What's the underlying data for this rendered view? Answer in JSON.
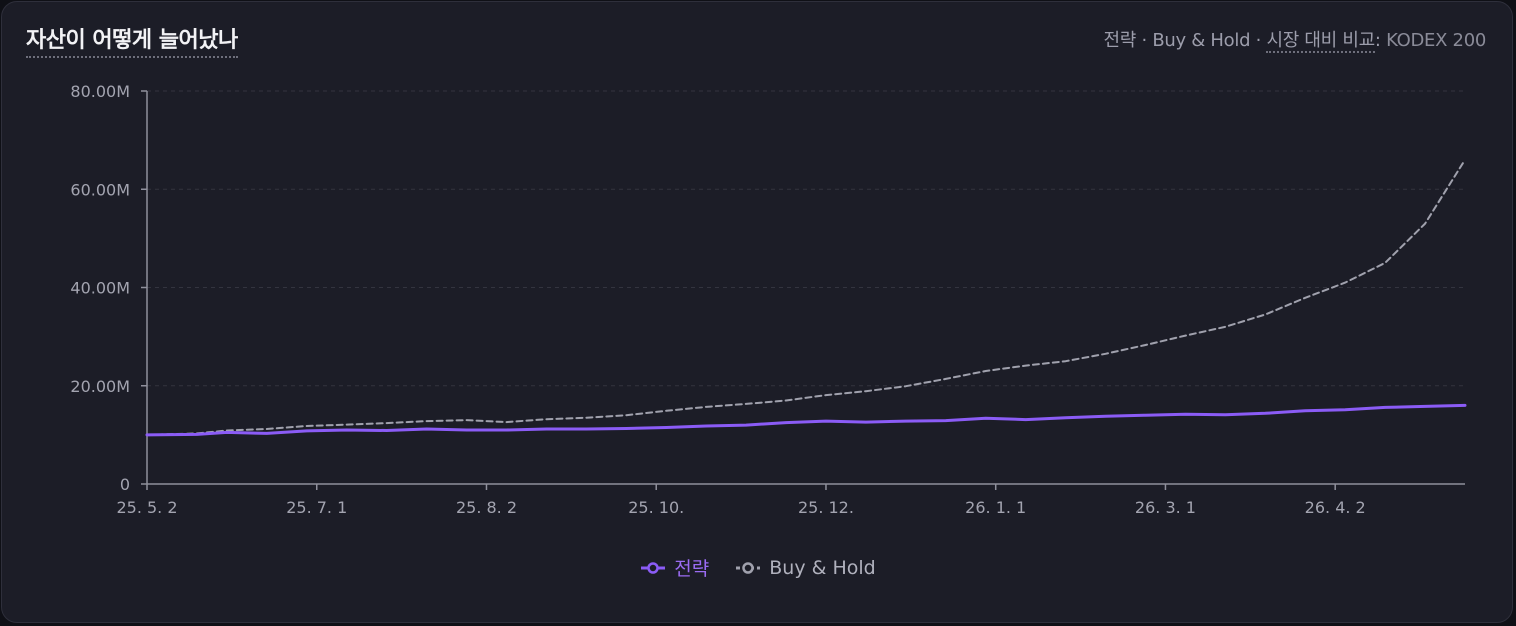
{
  "header": {
    "title": "자산이 어떻게 늘어났나",
    "subtitle_strategy": "전략",
    "subtitle_sep1": " · ",
    "subtitle_bh": "Buy & Hold",
    "subtitle_sep2": " · ",
    "subtitle_compare": "시장 대비 비교",
    "subtitle_colon": ": ",
    "subtitle_benchmark": "KODEX 200"
  },
  "colors": {
    "strategy": "#8b5cf6",
    "buy_hold": "#a0a1ad",
    "axis": "#8f909c",
    "tick_text": "#a3a4b0"
  },
  "chart_data": {
    "type": "line",
    "title": "자산이 어떻게 늘어났나",
    "xlabel": "",
    "ylabel": "",
    "ylim": [
      0,
      80000000
    ],
    "yticks": [
      "0",
      "20.00M",
      "40.00M",
      "60.00M",
      "80.00M"
    ],
    "yticks_values": [
      0,
      20000000,
      40000000,
      60000000,
      80000000
    ],
    "xticks": [
      "25. 5. 2",
      "25. 7. 1",
      "25. 8. 2",
      "25. 10.",
      "25. 12.",
      "26. 1. 1",
      "26. 3. 1",
      "26. 4. 2"
    ],
    "xticks_index": [
      0,
      17,
      34,
      51,
      68,
      85,
      102,
      119
    ],
    "x_count": 133,
    "grid": "horizontal-dashed",
    "legend": "bottom-center",
    "series": [
      {
        "name": "전략",
        "style": "solid",
        "points": [
          [
            0,
            10.0
          ],
          [
            5,
            10.1
          ],
          [
            8,
            10.5
          ],
          [
            12,
            10.3
          ],
          [
            16,
            10.8
          ],
          [
            20,
            11.0
          ],
          [
            24,
            10.9
          ],
          [
            28,
            11.2
          ],
          [
            32,
            11.0
          ],
          [
            36,
            11.0
          ],
          [
            40,
            11.2
          ],
          [
            44,
            11.2
          ],
          [
            48,
            11.3
          ],
          [
            52,
            11.5
          ],
          [
            56,
            11.8
          ],
          [
            60,
            12.0
          ],
          [
            64,
            12.5
          ],
          [
            68,
            12.8
          ],
          [
            72,
            12.6
          ],
          [
            76,
            12.8
          ],
          [
            80,
            12.9
          ],
          [
            84,
            13.4
          ],
          [
            88,
            13.1
          ],
          [
            92,
            13.5
          ],
          [
            96,
            13.8
          ],
          [
            100,
            14.0
          ],
          [
            104,
            14.2
          ],
          [
            108,
            14.1
          ],
          [
            112,
            14.4
          ],
          [
            116,
            14.9
          ],
          [
            120,
            15.1
          ],
          [
            124,
            15.6
          ],
          [
            128,
            15.8
          ],
          [
            132,
            16.0
          ]
        ]
      },
      {
        "name": "Buy & Hold",
        "style": "dashed",
        "points": [
          [
            0,
            10.0
          ],
          [
            5,
            10.3
          ],
          [
            8,
            10.9
          ],
          [
            12,
            11.2
          ],
          [
            16,
            11.8
          ],
          [
            20,
            12.1
          ],
          [
            24,
            12.4
          ],
          [
            28,
            12.8
          ],
          [
            32,
            13.0
          ],
          [
            36,
            12.6
          ],
          [
            40,
            13.2
          ],
          [
            44,
            13.5
          ],
          [
            48,
            14.0
          ],
          [
            52,
            14.9
          ],
          [
            56,
            15.7
          ],
          [
            60,
            16.3
          ],
          [
            64,
            17.0
          ],
          [
            68,
            18.1
          ],
          [
            72,
            18.9
          ],
          [
            76,
            19.9
          ],
          [
            80,
            21.4
          ],
          [
            84,
            23.0
          ],
          [
            88,
            24.1
          ],
          [
            92,
            25.0
          ],
          [
            96,
            26.5
          ],
          [
            100,
            28.3
          ],
          [
            104,
            30.2
          ],
          [
            108,
            32.0
          ],
          [
            112,
            34.5
          ],
          [
            116,
            37.9
          ],
          [
            120,
            41.0
          ],
          [
            124,
            45.0
          ],
          [
            128,
            53.0
          ],
          [
            132,
            66.0
          ]
        ]
      }
    ]
  },
  "legend": {
    "strategy_label": "전략",
    "bh_label": "Buy & Hold"
  }
}
